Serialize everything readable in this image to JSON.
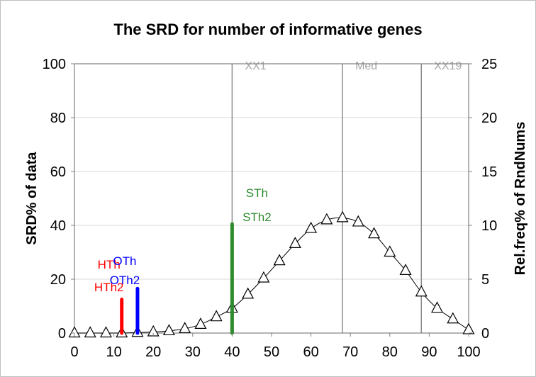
{
  "chart_data": {
    "type": "line",
    "title": "The SRD for number of informative genes",
    "xlabel": "",
    "ylabel": "SRD% of data",
    "y2label": "Rel.freq% of RndNums",
    "xlim": [
      0,
      100
    ],
    "ylim": [
      0,
      100
    ],
    "y2lim": [
      0,
      25
    ],
    "xticks": [
      0,
      10,
      20,
      30,
      40,
      50,
      60,
      70,
      80,
      90,
      100
    ],
    "yticks": [
      0,
      20,
      40,
      60,
      80,
      100
    ],
    "y2ticks": [
      0,
      5,
      10,
      15,
      20,
      25
    ],
    "grid": true,
    "series": [
      {
        "name": "Rel.freq% of RndNums",
        "axis": "y2",
        "marker": "triangle",
        "x": [
          0,
          4,
          8,
          12,
          16,
          20,
          24,
          28,
          32,
          36,
          40,
          44,
          48,
          52,
          56,
          60,
          64,
          68,
          72,
          76,
          80,
          84,
          88,
          92,
          96,
          100
        ],
        "y": [
          0,
          0,
          0,
          0,
          0.05,
          0.1,
          0.2,
          0.4,
          0.8,
          1.5,
          2.3,
          3.6,
          5.1,
          6.7,
          8.3,
          9.7,
          10.5,
          10.7,
          10.3,
          9.2,
          7.5,
          5.8,
          3.8,
          2.3,
          1.3,
          0.3
        ]
      }
    ],
    "reference_lines": [
      {
        "label": "XX1",
        "x": 40,
        "color": "#a6a6a6"
      },
      {
        "label": "Med",
        "x": 68,
        "color": "#a6a6a6"
      },
      {
        "label": "XX19",
        "x": 88,
        "color": "#a6a6a6"
      }
    ],
    "threshold_bars": [
      {
        "labels": [
          "HTh",
          "HTh2"
        ],
        "x": 12,
        "value": 12.5,
        "color": "#ff0000"
      },
      {
        "labels": [
          "OTh",
          "OTh2"
        ],
        "x": 16,
        "value": 16.5,
        "color": "#0000ff"
      },
      {
        "labels": [
          "STh",
          "STh2"
        ],
        "x": 40,
        "value": 40.5,
        "color": "#2e8b2e"
      }
    ]
  }
}
